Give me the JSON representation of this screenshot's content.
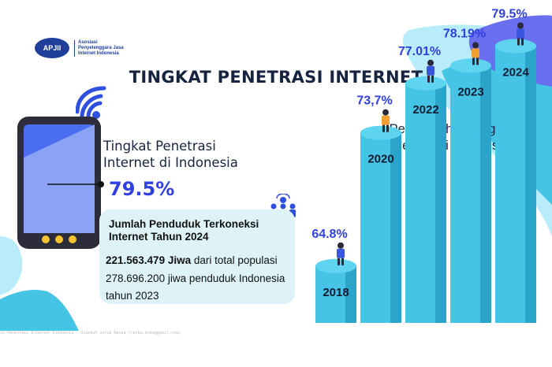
{
  "logo": {
    "mark": "APJII",
    "text": "Asosiasi Penyelenggara Jasa Internet Indonesia"
  },
  "title": "TINGKAT PENETRASI INTERNET",
  "metric": {
    "label": "Tingkat Penetrasi Internet di Indonesia",
    "value": "79.5%"
  },
  "info": {
    "title": "Jumlah Penduduk Terkoneksi Internet Tahun 2024",
    "line1_bold": "221.563.479 Jiwa",
    "line1_rest": " dari total populasi",
    "line2": "278.696.200 jiwa penduduk Indonesia",
    "line3": "tahun 2023"
  },
  "footer": "si Penetrasi Internet Indonesia - Diunduh untuk Reska (reska.koko@gmail.com)",
  "colors": {
    "navy": "#16243f",
    "accent_blue": "#2f3fe0",
    "cyan": "#46c4e6",
    "cyan_dark": "#2aa4c9",
    "box_bg": "#ddf3f8"
  },
  "chart_data": {
    "type": "bar",
    "title": "Pertumbuhan Tingkat Penetrasi Indonesia",
    "categories": [
      "2018",
      "2020",
      "2022",
      "2023",
      "2024"
    ],
    "values": [
      64.8,
      73.7,
      77.01,
      78.19,
      79.5
    ],
    "value_labels": [
      "64.8%",
      "73,7%",
      "77.01%",
      "78.19%",
      "79.5%"
    ],
    "xlabel": "",
    "ylabel": "",
    "grid": false
  }
}
